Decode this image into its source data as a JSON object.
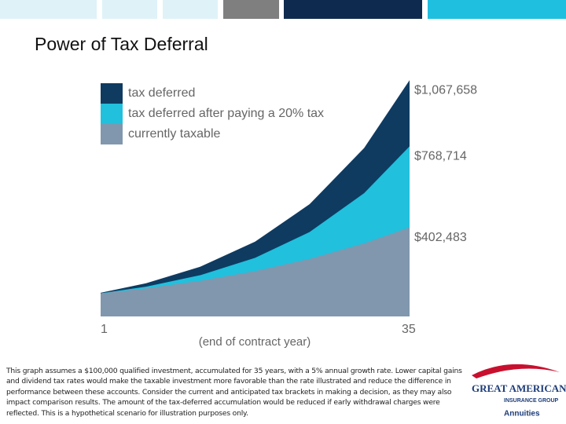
{
  "chart_data": {
    "type": "area",
    "title": "Power of Tax Deferral",
    "x": [
      1,
      6,
      12,
      18,
      24,
      30,
      35
    ],
    "xlim": [
      1,
      35
    ],
    "xticks": [
      1,
      35
    ],
    "xlabel": "(end of contract year)",
    "ylim": [
      0,
      1100000
    ],
    "legend": "top-left",
    "series": [
      {
        "name": "tax deferred",
        "color": "#0f3b61",
        "values": [
          107000,
          150073,
          225219,
          337993,
          507236,
          761226,
          1067658
        ],
        "end_label": "$1,067,658"
      },
      {
        "name": "tax deferred after paying a 20% tax",
        "color": "#21c0dd",
        "values": [
          104837,
          134600,
          186660,
          264600,
          381600,
          556900,
          768714
        ],
        "end_label": "$768,714"
      },
      {
        "name": "currently taxable",
        "color": "#8197ae",
        "values": [
          104060,
          126970,
          161220,
          204670,
          259860,
          329900,
          402483
        ],
        "end_label": "$402,483"
      }
    ]
  },
  "footnote": "This graph assumes a $100,000 qualified investment, accumulated for 35 years, with a 5% annual growth rate. Lower capital gains and dividend tax rates would make the taxable investment more favorable than the rate illustrated and reduce the difference in performance between these accounts. Consider the current and anticipated tax brackets in making a decision, as they may also impact comparison results. The amount of the tax-deferred accumulation would be reduced if early withdrawal charges were reflected. This is a hypothetical scenario for illustration purposes only.",
  "logo": {
    "line1": "GREAT AMERICAN.",
    "line2": "INSURANCE GROUP",
    "line3": "Annuities"
  }
}
